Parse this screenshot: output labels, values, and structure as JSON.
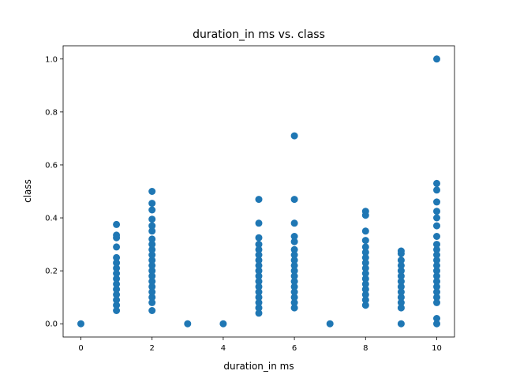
{
  "chart_data": {
    "type": "scatter",
    "title": "duration_in ms vs. class",
    "xlabel": "duration_in ms",
    "ylabel": "class",
    "xlim": [
      -0.5,
      10.5
    ],
    "ylim": [
      -0.05,
      1.05
    ],
    "xticks": [
      0,
      2,
      4,
      6,
      8,
      10
    ],
    "yticks": [
      0.0,
      0.2,
      0.4,
      0.6,
      0.8,
      1.0
    ],
    "xtick_labels": [
      "0",
      "2",
      "4",
      "6",
      "8",
      "10"
    ],
    "ytick_labels": [
      "0.0",
      "0.2",
      "0.4",
      "0.6",
      "0.8",
      "1.0"
    ],
    "grid": false,
    "marker_color": "#1f77b4",
    "series": [
      {
        "points": [
          [
            0,
            0.0
          ],
          [
            1,
            0.05
          ],
          [
            1,
            0.07
          ],
          [
            1,
            0.09
          ],
          [
            1,
            0.11
          ],
          [
            1,
            0.13
          ],
          [
            1,
            0.15
          ],
          [
            1,
            0.17
          ],
          [
            1,
            0.19
          ],
          [
            1,
            0.21
          ],
          [
            1,
            0.23
          ],
          [
            1,
            0.25
          ],
          [
            1,
            0.29
          ],
          [
            1,
            0.325
          ],
          [
            1,
            0.335
          ],
          [
            1,
            0.375
          ],
          [
            2,
            0.05
          ],
          [
            2,
            0.08
          ],
          [
            2,
            0.1
          ],
          [
            2,
            0.12
          ],
          [
            2,
            0.14
          ],
          [
            2,
            0.16
          ],
          [
            2,
            0.18
          ],
          [
            2,
            0.2
          ],
          [
            2,
            0.22
          ],
          [
            2,
            0.24
          ],
          [
            2,
            0.26
          ],
          [
            2,
            0.28
          ],
          [
            2,
            0.3
          ],
          [
            2,
            0.32
          ],
          [
            2,
            0.35
          ],
          [
            2,
            0.37
          ],
          [
            2,
            0.395
          ],
          [
            2,
            0.43
          ],
          [
            2,
            0.455
          ],
          [
            2,
            0.5
          ],
          [
            3,
            0.0
          ],
          [
            4,
            0.0
          ],
          [
            5,
            0.04
          ],
          [
            5,
            0.06
          ],
          [
            5,
            0.08
          ],
          [
            5,
            0.1
          ],
          [
            5,
            0.12
          ],
          [
            5,
            0.14
          ],
          [
            5,
            0.16
          ],
          [
            5,
            0.18
          ],
          [
            5,
            0.2
          ],
          [
            5,
            0.22
          ],
          [
            5,
            0.24
          ],
          [
            5,
            0.26
          ],
          [
            5,
            0.28
          ],
          [
            5,
            0.3
          ],
          [
            5,
            0.325
          ],
          [
            5,
            0.38
          ],
          [
            5,
            0.47
          ],
          [
            6,
            0.06
          ],
          [
            6,
            0.08
          ],
          [
            6,
            0.1
          ],
          [
            6,
            0.12
          ],
          [
            6,
            0.14
          ],
          [
            6,
            0.16
          ],
          [
            6,
            0.18
          ],
          [
            6,
            0.2
          ],
          [
            6,
            0.22
          ],
          [
            6,
            0.24
          ],
          [
            6,
            0.26
          ],
          [
            6,
            0.28
          ],
          [
            6,
            0.31
          ],
          [
            6,
            0.33
          ],
          [
            6,
            0.38
          ],
          [
            6,
            0.47
          ],
          [
            6,
            0.71
          ],
          [
            7,
            0.0
          ],
          [
            8,
            0.07
          ],
          [
            8,
            0.09
          ],
          [
            8,
            0.11
          ],
          [
            8,
            0.13
          ],
          [
            8,
            0.15
          ],
          [
            8,
            0.17
          ],
          [
            8,
            0.19
          ],
          [
            8,
            0.21
          ],
          [
            8,
            0.23
          ],
          [
            8,
            0.25
          ],
          [
            8,
            0.27
          ],
          [
            8,
            0.29
          ],
          [
            8,
            0.315
          ],
          [
            8,
            0.35
          ],
          [
            8,
            0.41
          ],
          [
            8,
            0.425
          ],
          [
            9,
            0.0
          ],
          [
            9,
            0.06
          ],
          [
            9,
            0.08
          ],
          [
            9,
            0.1
          ],
          [
            9,
            0.12
          ],
          [
            9,
            0.14
          ],
          [
            9,
            0.16
          ],
          [
            9,
            0.18
          ],
          [
            9,
            0.2
          ],
          [
            9,
            0.22
          ],
          [
            9,
            0.24
          ],
          [
            9,
            0.265
          ],
          [
            9,
            0.275
          ],
          [
            10,
            0.0
          ],
          [
            10,
            0.02
          ],
          [
            10,
            0.08
          ],
          [
            10,
            0.1
          ],
          [
            10,
            0.12
          ],
          [
            10,
            0.14
          ],
          [
            10,
            0.16
          ],
          [
            10,
            0.18
          ],
          [
            10,
            0.2
          ],
          [
            10,
            0.22
          ],
          [
            10,
            0.24
          ],
          [
            10,
            0.26
          ],
          [
            10,
            0.28
          ],
          [
            10,
            0.3
          ],
          [
            10,
            0.33
          ],
          [
            10,
            0.37
          ],
          [
            10,
            0.4
          ],
          [
            10,
            0.425
          ],
          [
            10,
            0.46
          ],
          [
            10,
            0.505
          ],
          [
            10,
            0.53
          ],
          [
            10,
            1.0
          ]
        ]
      }
    ]
  }
}
